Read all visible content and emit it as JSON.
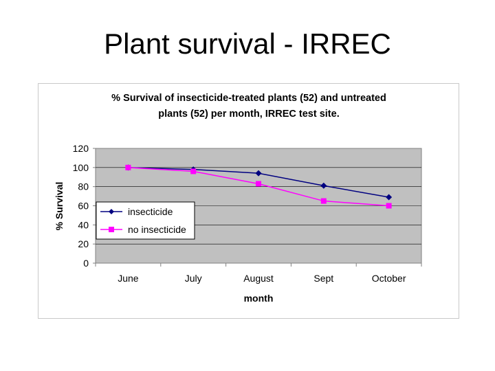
{
  "slide": {
    "title": "Plant survival - IRREC"
  },
  "chart_data": {
    "type": "line",
    "title_lines": [
      "% Survival of insecticide-treated plants (52) and untreated",
      "plants (52) per month, IRREC test site."
    ],
    "categories": [
      "June",
      "July",
      "August",
      "Sept",
      "October"
    ],
    "series": [
      {
        "name": "insecticide",
        "values": [
          100,
          98,
          94,
          81,
          69
        ],
        "color": "#000080",
        "marker": "diamond"
      },
      {
        "name": "no insecticide",
        "values": [
          100,
          96,
          83,
          65,
          60
        ],
        "color": "#ff00ff",
        "marker": "square"
      }
    ],
    "xlabel": "month",
    "ylabel": "% Survival",
    "ylim": [
      0,
      120
    ],
    "yticks": [
      0,
      20,
      40,
      60,
      80,
      100,
      120
    ],
    "ytick_labels": [
      "0",
      "20",
      "40",
      "60",
      "80",
      "100",
      "120"
    ],
    "grid": true,
    "plot_background": "#c0c0c0",
    "legend_position": "left"
  }
}
